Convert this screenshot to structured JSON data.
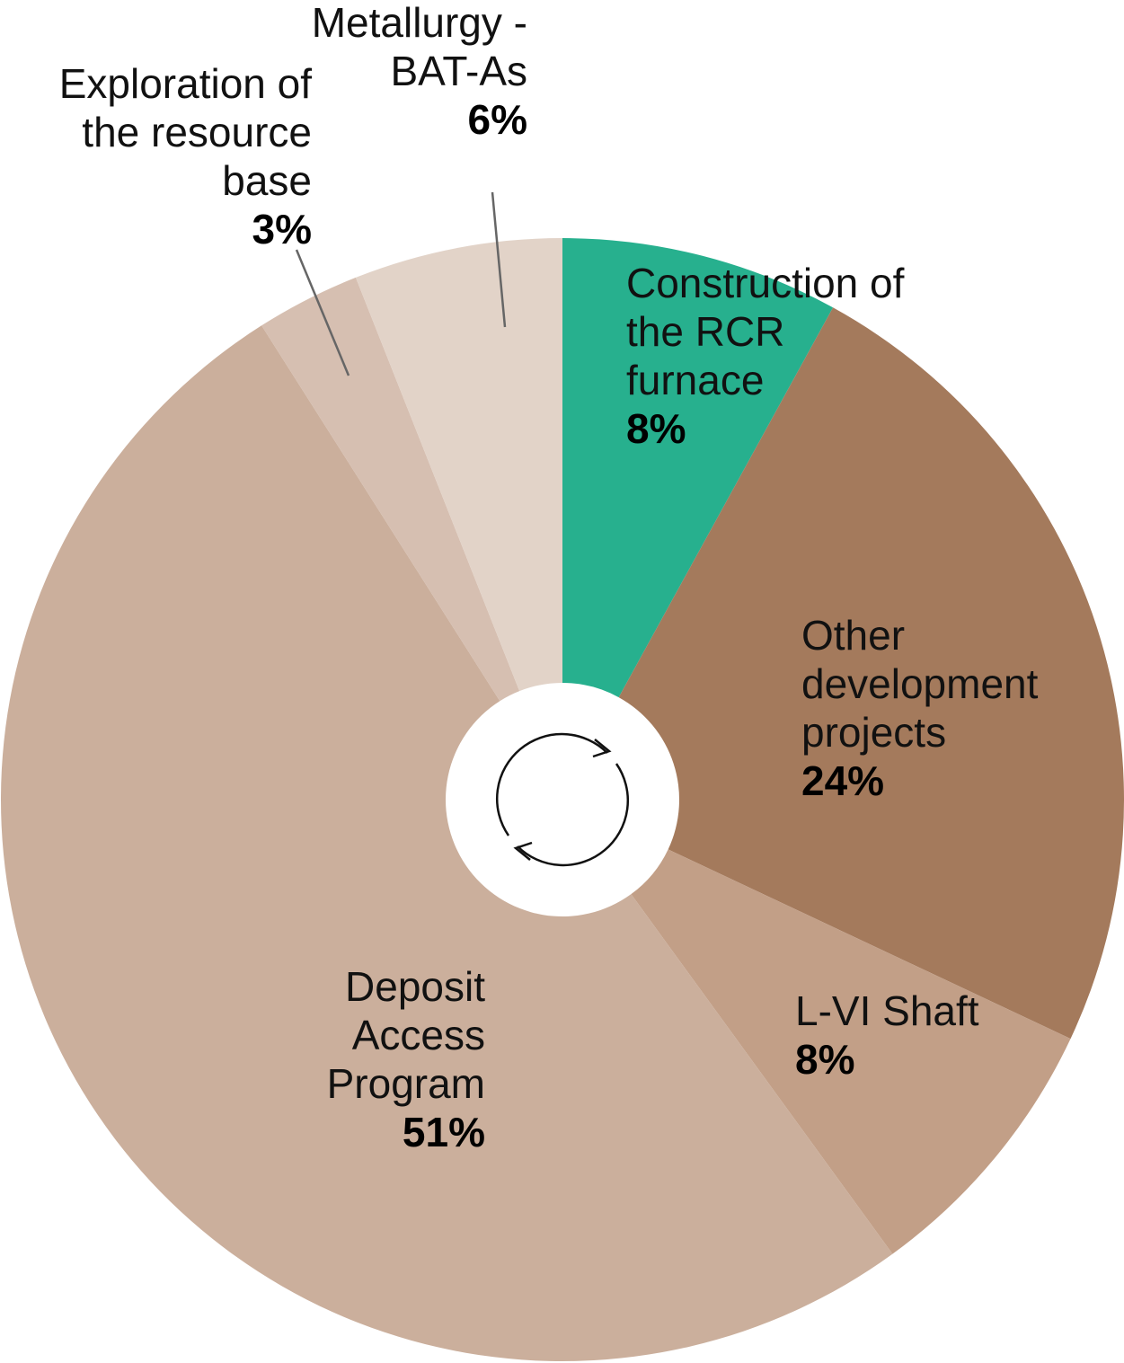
{
  "chart_data": {
    "type": "donut",
    "categories": [
      "Construction of the RCR furnace",
      "Other development projects",
      "L-VI Shaft",
      "Deposit Access Program",
      "Exploration of the resource base",
      "Metallurgy - BAT-As"
    ],
    "values": [
      8,
      24,
      8,
      51,
      3,
      6
    ],
    "value_labels": [
      "8%",
      "24%",
      "8%",
      "51%",
      "3%",
      "6%"
    ],
    "colors": [
      "#27b08e",
      "#a47a5c",
      "#c29f87",
      "#cbaf9c",
      "#d6bfb1",
      "#e2d3c8"
    ]
  }
}
